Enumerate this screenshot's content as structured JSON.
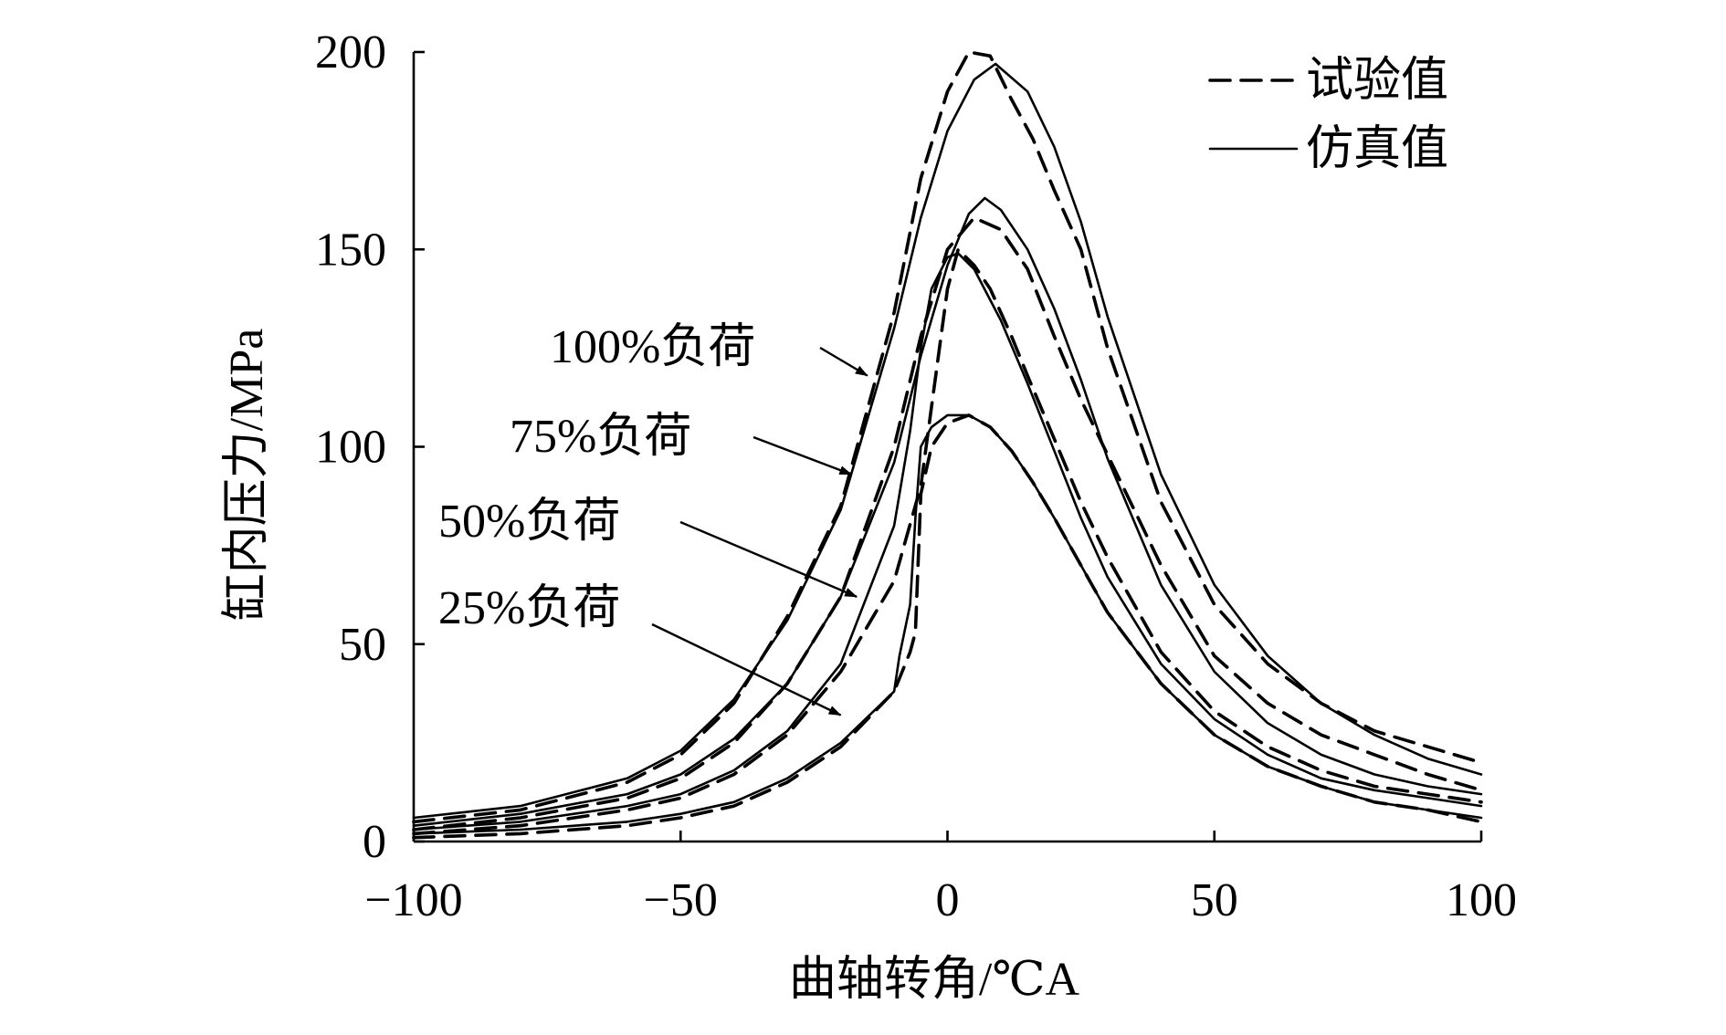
{
  "chart_data": {
    "type": "line",
    "xlabel": "曲轴转角/℃A",
    "ylabel": "缸内压力/MPa",
    "xlim": [
      -100,
      100
    ],
    "ylim": [
      0,
      200
    ],
    "x_ticks": [
      -100,
      -50,
      0,
      50,
      100
    ],
    "x_tick_labels": [
      "−100",
      "−50",
      "0",
      "50",
      "100"
    ],
    "y_ticks": [
      0,
      50,
      100,
      150,
      200
    ],
    "y_tick_labels": [
      "0",
      "50",
      "100",
      "150",
      "200"
    ],
    "grid": false,
    "legend": {
      "placement": "top-right",
      "entries": [
        {
          "label": "试验值",
          "style": "dashed"
        },
        {
          "label": "仿真值",
          "style": "solid"
        }
      ]
    },
    "annotations": [
      {
        "text": "100%负荷",
        "target": [
          -15,
          118
        ]
      },
      {
        "text": "75%负荷",
        "target": [
          -18,
          93
        ]
      },
      {
        "text": "50%负荷",
        "target": [
          -17,
          62
        ]
      },
      {
        "text": "25%负荷",
        "target": [
          -20,
          32
        ]
      }
    ],
    "series": [
      {
        "load": "100%负荷",
        "style": "solid",
        "x": [
          -100,
          -80,
          -60,
          -50,
          -40,
          -30,
          -20,
          -10,
          -5,
          0,
          5,
          9,
          15,
          20,
          25,
          30,
          40,
          50,
          60,
          70,
          80,
          90,
          100
        ],
        "y": [
          6,
          9,
          16,
          23,
          36,
          56,
          84,
          130,
          158,
          180,
          193,
          197,
          190,
          176,
          157,
          133,
          93,
          65,
          47,
          35,
          27,
          21,
          17
        ]
      },
      {
        "load": "100%负荷",
        "style": "dashed",
        "x": [
          -100,
          -80,
          -60,
          -50,
          -40,
          -30,
          -20,
          -10,
          -5,
          0,
          4,
          8,
          12,
          16,
          20,
          25,
          30,
          40,
          50,
          60,
          70,
          80,
          90,
          100
        ],
        "y": [
          5,
          8,
          15,
          22,
          35,
          57,
          85,
          134,
          168,
          190,
          200,
          199,
          188,
          178,
          165,
          150,
          125,
          86,
          60,
          45,
          35,
          28,
          24,
          20
        ]
      },
      {
        "load": "75%负荷",
        "style": "solid",
        "x": [
          -100,
          -80,
          -60,
          -50,
          -40,
          -30,
          -20,
          -10,
          -5,
          0,
          4,
          7,
          10,
          15,
          20,
          25,
          30,
          40,
          50,
          60,
          70,
          80,
          90,
          100
        ],
        "y": [
          4,
          7,
          12,
          17,
          26,
          40,
          62,
          96,
          123,
          146,
          159,
          163,
          160,
          150,
          135,
          117,
          97,
          65,
          43,
          30,
          22,
          17,
          14,
          12
        ]
      },
      {
        "load": "75%负荷",
        "style": "dashed",
        "x": [
          -100,
          -80,
          -60,
          -50,
          -40,
          -30,
          -20,
          -10,
          -5,
          0,
          5,
          10,
          15,
          20,
          25,
          30,
          40,
          50,
          60,
          70,
          80,
          90,
          100
        ],
        "y": [
          3,
          6,
          11,
          16,
          25,
          40,
          62,
          100,
          128,
          150,
          158,
          155,
          145,
          128,
          112,
          98,
          70,
          47,
          35,
          27,
          22,
          17,
          13
        ]
      },
      {
        "load": "50%负荷",
        "style": "solid",
        "x": [
          -100,
          -80,
          -60,
          -50,
          -40,
          -30,
          -20,
          -10,
          -7,
          -5,
          -3,
          0,
          2,
          5,
          10,
          15,
          20,
          25,
          30,
          40,
          50,
          60,
          70,
          80,
          90,
          100
        ],
        "y": [
          3,
          5,
          9,
          12,
          18,
          28,
          45,
          80,
          104,
          125,
          140,
          148,
          149,
          145,
          132,
          116,
          99,
          82,
          67,
          45,
          31,
          22,
          16,
          13,
          11,
          9
        ]
      },
      {
        "load": "50%负荷",
        "style": "dashed",
        "x": [
          -100,
          -80,
          -60,
          -50,
          -40,
          -30,
          -20,
          -10,
          -5,
          -2,
          0,
          2,
          5,
          8,
          12,
          15,
          20,
          25,
          30,
          40,
          50,
          60,
          70,
          80,
          90,
          100
        ],
        "y": [
          2,
          4,
          8,
          11,
          17,
          27,
          43,
          66,
          90,
          120,
          140,
          150,
          146,
          140,
          128,
          118,
          102,
          86,
          72,
          48,
          33,
          24,
          18,
          14,
          12,
          10
        ]
      },
      {
        "load": "25%负荷",
        "style": "solid",
        "x": [
          -100,
          -80,
          -60,
          -50,
          -40,
          -30,
          -20,
          -10,
          -9,
          -7,
          -6,
          -5,
          -3,
          0,
          4,
          8,
          12,
          16,
          20,
          25,
          30,
          40,
          50,
          60,
          70,
          80,
          90,
          100
        ],
        "y": [
          2,
          3,
          5,
          7,
          10,
          16,
          25,
          38,
          47,
          60,
          82,
          100,
          105,
          108,
          108,
          105,
          99,
          91,
          82,
          70,
          58,
          40,
          27,
          19,
          14,
          10,
          8,
          6
        ]
      },
      {
        "load": "25%负荷",
        "style": "dashed",
        "x": [
          -100,
          -80,
          -60,
          -50,
          -40,
          -30,
          -20,
          -10,
          -7,
          -6,
          -5,
          -3,
          0,
          4,
          8,
          12,
          16,
          20,
          25,
          30,
          40,
          50,
          60,
          70,
          80,
          90,
          100
        ],
        "y": [
          1,
          2,
          4,
          6,
          9,
          15,
          24,
          38,
          48,
          53,
          88,
          100,
          106,
          108,
          105,
          99,
          91,
          82,
          70,
          58,
          40,
          27,
          19,
          14,
          10,
          8,
          5
        ]
      }
    ]
  }
}
